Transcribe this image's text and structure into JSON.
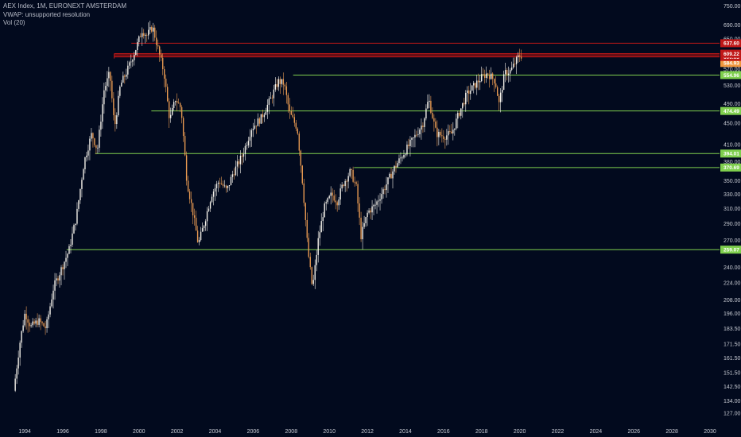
{
  "legend": {
    "symbol_line": "AEX Index, 1M, EURONEXT AMSTERDAM",
    "vwap_line": "VWAP: unsupported resolution",
    "volume_line": "Vol (20)"
  },
  "colors": {
    "background": "#020a1e",
    "up_candle": "#f4f1ea",
    "down_candle": "#e89a52",
    "support_line": "#7fcf4e",
    "resistance_line": "#c01818",
    "resistance_fill": "#7a0f14",
    "current_price_badge": "#f0963c",
    "axis_text": "#c7cad2"
  },
  "chart_data": {
    "type": "candlestick",
    "title": "AEX Index, 1M, EURONEXT AMSTERDAM",
    "y_scale": "log",
    "y_ticks": [
      "750.00",
      "690.00",
      "650.00",
      "600.00",
      "570.00",
      "530.00",
      "490.00",
      "450.00",
      "410.00",
      "380.00",
      "350.00",
      "330.00",
      "310.00",
      "290.00",
      "270.00",
      "240.00",
      "224.00",
      "208.00",
      "196.00",
      "183.50",
      "171.50",
      "161.50",
      "151.50",
      "142.50",
      "134.00",
      "127.00"
    ],
    "x_ticks": [
      "1994",
      "1996",
      "1998",
      "2000",
      "2002",
      "2004",
      "2006",
      "2008",
      "2010",
      "2012",
      "2014",
      "2016",
      "2018",
      "2020",
      "2022",
      "2024",
      "2026",
      "2028",
      "2030"
    ],
    "x_range": [
      1992.7,
      2030.5
    ],
    "y_range": [
      120.5,
      770
    ],
    "price_anchors": [
      [
        1993.5,
        140
      ],
      [
        1993.85,
        175
      ],
      [
        1994.1,
        197
      ],
      [
        1994.4,
        185
      ],
      [
        1994.8,
        190
      ],
      [
        1995.2,
        184
      ],
      [
        1995.6,
        220
      ],
      [
        1996.0,
        238
      ],
      [
        1996.4,
        258
      ],
      [
        1996.8,
        300
      ],
      [
        1997.2,
        380
      ],
      [
        1997.6,
        430
      ],
      [
        1997.9,
        400
      ],
      [
        1998.25,
        520
      ],
      [
        1998.55,
        560
      ],
      [
        1998.8,
        440
      ],
      [
        1999.1,
        530
      ],
      [
        1999.5,
        570
      ],
      [
        1999.9,
        620
      ],
      [
        2000.25,
        675
      ],
      [
        2000.5,
        660
      ],
      [
        2000.8,
        685
      ],
      [
        2001.0,
        640
      ],
      [
        2001.4,
        560
      ],
      [
        2001.7,
        455
      ],
      [
        2002.0,
        500
      ],
      [
        2002.3,
        480
      ],
      [
        2002.6,
        350
      ],
      [
        2002.95,
        300
      ],
      [
        2003.2,
        265
      ],
      [
        2003.5,
        290
      ],
      [
        2003.9,
        330
      ],
      [
        2004.3,
        350
      ],
      [
        2004.7,
        335
      ],
      [
        2005.0,
        360
      ],
      [
        2005.5,
        390
      ],
      [
        2006.0,
        440
      ],
      [
        2006.5,
        460
      ],
      [
        2007.0,
        500
      ],
      [
        2007.4,
        540
      ],
      [
        2007.7,
        535
      ],
      [
        2008.0,
        470
      ],
      [
        2008.4,
        440
      ],
      [
        2008.7,
        340
      ],
      [
        2008.95,
        260
      ],
      [
        2009.2,
        218
      ],
      [
        2009.5,
        270
      ],
      [
        2009.8,
        310
      ],
      [
        2010.2,
        330
      ],
      [
        2010.5,
        320
      ],
      [
        2010.8,
        345
      ],
      [
        2011.2,
        365
      ],
      [
        2011.5,
        340
      ],
      [
        2011.75,
        275
      ],
      [
        2012.1,
        305
      ],
      [
        2012.5,
        315
      ],
      [
        2013.0,
        340
      ],
      [
        2013.5,
        370
      ],
      [
        2014.0,
        395
      ],
      [
        2014.5,
        420
      ],
      [
        2015.0,
        450
      ],
      [
        2015.3,
        500
      ],
      [
        2015.7,
        430
      ],
      [
        2016.1,
        425
      ],
      [
        2016.5,
        430
      ],
      [
        2016.9,
        470
      ],
      [
        2017.3,
        510
      ],
      [
        2017.8,
        535
      ],
      [
        2018.1,
        550
      ],
      [
        2018.4,
        560
      ],
      [
        2018.8,
        540
      ],
      [
        2019.0,
        490
      ],
      [
        2019.3,
        560
      ],
      [
        2019.6,
        565
      ],
      [
        2019.9,
        590
      ],
      [
        2020.05,
        604
      ]
    ],
    "levels": [
      {
        "kind": "support",
        "start_x": 1996.2,
        "price": 259.07,
        "label": "259.07"
      },
      {
        "kind": "support",
        "start_x": 2011.3,
        "price": 370.69,
        "label": "370.69"
      },
      {
        "kind": "support",
        "start_x": 1997.7,
        "price": 394.01,
        "label": "394.01"
      },
      {
        "kind": "support",
        "start_x": 2000.65,
        "price": 474.49,
        "label": "474.49"
      },
      {
        "kind": "support",
        "start_x": 2008.1,
        "price": 554.96,
        "label": "554.96"
      },
      {
        "kind": "current",
        "start_x": null,
        "price": 584.93,
        "label": "584.93"
      },
      {
        "kind": "resistance",
        "start_x": 1998.7,
        "price": 600.65,
        "label": "600.65"
      },
      {
        "kind": "resistance",
        "start_x": 1998.7,
        "price": 609.22,
        "label": "609.22"
      },
      {
        "kind": "resistance",
        "start_x": 1999.6,
        "price": 637.6,
        "label": "637.60"
      }
    ],
    "resistance_band": [
      600.65,
      609.22
    ]
  }
}
